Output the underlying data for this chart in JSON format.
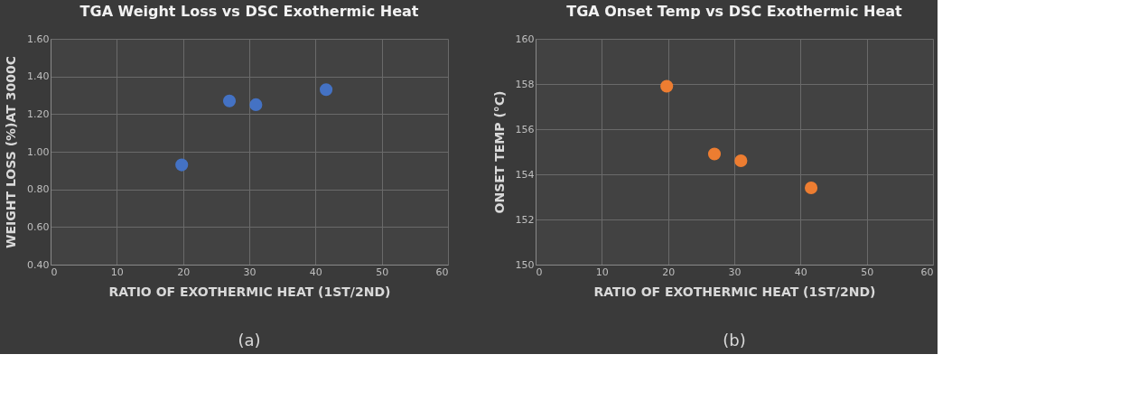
{
  "chart_data": [
    {
      "type": "scatter",
      "title": "TGA Weight Loss vs DSC Exothermic Heat",
      "xlabel": "RATIO OF EXOTHERMIC HEAT (1ST/2ND)",
      "ylabel": "WEIGHT LOSS (%)AT 3000C",
      "annotations": [
        "(a)"
      ],
      "x": [
        19.8,
        27,
        31,
        41.6
      ],
      "series": [
        {
          "color": "#4472c4",
          "values": [
            0.93,
            1.27,
            1.25,
            1.33
          ]
        }
      ],
      "xlim": [
        0,
        60
      ],
      "xticks": [
        0,
        10,
        20,
        30,
        40,
        50,
        60
      ],
      "ylim": [
        0.4,
        1.6
      ],
      "yticks": [
        {
          "value": 0.4,
          "label": "0.40"
        },
        {
          "value": 0.6,
          "label": "0.60"
        },
        {
          "value": 0.8,
          "label": "0.80"
        },
        {
          "value": 1.0,
          "label": "1.00"
        },
        {
          "value": 1.2,
          "label": "1.20"
        },
        {
          "value": 1.4,
          "label": "1.40"
        },
        {
          "value": 1.6,
          "label": "1.60"
        }
      ],
      "grid": true,
      "marker": "circle"
    },
    {
      "type": "scatter",
      "title": "TGA Onset Temp vs DSC Exothermic Heat",
      "xlabel": "RATIO OF EXOTHERMIC HEAT (1ST/2ND)",
      "ylabel": "ONSET TEMP (°C)",
      "annotations": [
        "(b)"
      ],
      "x": [
        19.8,
        27,
        31,
        41.6
      ],
      "series": [
        {
          "color": "#ed7d31",
          "values": [
            157.9,
            154.9,
            154.6,
            153.4
          ]
        }
      ],
      "xlim": [
        0,
        60
      ],
      "xticks": [
        0,
        10,
        20,
        30,
        40,
        50,
        60
      ],
      "ylim": [
        150,
        160
      ],
      "yticks": [
        150,
        152,
        154,
        156,
        158,
        160
      ],
      "grid": true,
      "marker": "circle"
    }
  ]
}
